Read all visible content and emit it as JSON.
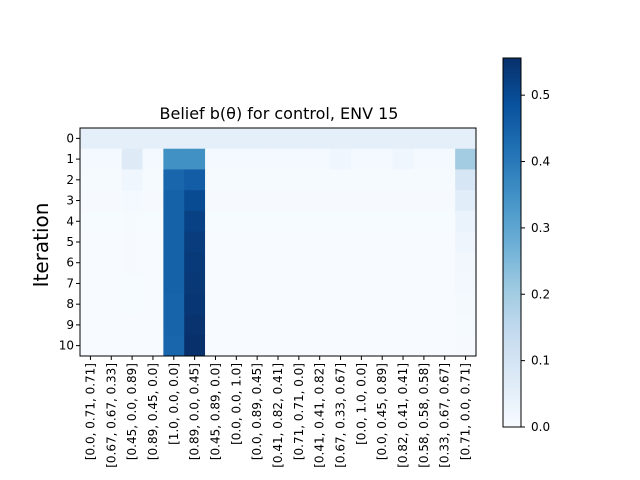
{
  "chart_data": {
    "type": "heatmap",
    "title": "Belief b(θ) for control, ENV 15",
    "xlabel": "",
    "ylabel": "Iteration",
    "colormap": "Blues",
    "colormap_stops": [
      "#f7fbff",
      "#deebf7",
      "#c6dbef",
      "#9ecae1",
      "#6baed6",
      "#4292c6",
      "#2171b5",
      "#08519c",
      "#08306b"
    ],
    "clim": [
      0.0,
      0.556
    ],
    "colorbar_ticks": [
      "0.0",
      "0.1",
      "0.2",
      "0.3",
      "0.4",
      "0.5"
    ],
    "x_categories": [
      "[0.0, 0.71, 0.71]",
      "[0.67, 0.67, 0.33]",
      "[0.45, 0.0, 0.89]",
      "[0.89, 0.45, 0.0]",
      "[1.0, 0.0, 0.0]",
      "[0.89, 0.0, 0.45]",
      "[0.45, 0.89, 0.0]",
      "[0.0, 0.0, 1.0]",
      "[0.0, 0.89, 0.45]",
      "[0.41, 0.82, 0.41]",
      "[0.71, 0.71, 0.0]",
      "[0.41, 0.41, 0.82]",
      "[0.67, 0.33, 0.67]",
      "[0.0, 1.0, 0.0]",
      "[0.0, 0.45, 0.89]",
      "[0.82, 0.41, 0.41]",
      "[0.58, 0.58, 0.58]",
      "[0.33, 0.67, 0.67]",
      "[0.71, 0.0, 0.71]"
    ],
    "y_categories": [
      "0",
      "1",
      "2",
      "3",
      "4",
      "5",
      "6",
      "7",
      "8",
      "9",
      "10"
    ],
    "values": [
      [
        0.053,
        0.053,
        0.053,
        0.053,
        0.053,
        0.053,
        0.053,
        0.053,
        0.053,
        0.053,
        0.053,
        0.053,
        0.053,
        0.053,
        0.053,
        0.053,
        0.053,
        0.053,
        0.053
      ],
      [
        0.01,
        0.01,
        0.07,
        0.01,
        0.35,
        0.35,
        0.01,
        0.01,
        0.01,
        0.01,
        0.01,
        0.01,
        0.02,
        0.01,
        0.01,
        0.02,
        0.01,
        0.01,
        0.2
      ],
      [
        0.005,
        0.005,
        0.02,
        0.005,
        0.44,
        0.46,
        0.005,
        0.005,
        0.005,
        0.005,
        0.005,
        0.005,
        0.005,
        0.005,
        0.005,
        0.005,
        0.005,
        0.005,
        0.09
      ],
      [
        0.003,
        0.003,
        0.01,
        0.003,
        0.45,
        0.5,
        0.003,
        0.003,
        0.003,
        0.003,
        0.003,
        0.003,
        0.003,
        0.003,
        0.003,
        0.003,
        0.003,
        0.003,
        0.06
      ],
      [
        0.002,
        0.002,
        0.006,
        0.002,
        0.45,
        0.52,
        0.002,
        0.002,
        0.002,
        0.002,
        0.002,
        0.002,
        0.002,
        0.002,
        0.002,
        0.002,
        0.002,
        0.002,
        0.035
      ],
      [
        0.001,
        0.001,
        0.004,
        0.001,
        0.45,
        0.53,
        0.001,
        0.001,
        0.001,
        0.001,
        0.001,
        0.001,
        0.001,
        0.001,
        0.001,
        0.001,
        0.001,
        0.001,
        0.025
      ],
      [
        0.001,
        0.001,
        0.003,
        0.001,
        0.45,
        0.535,
        0.001,
        0.001,
        0.001,
        0.001,
        0.001,
        0.001,
        0.001,
        0.001,
        0.001,
        0.001,
        0.001,
        0.001,
        0.018
      ],
      [
        0.001,
        0.001,
        0.002,
        0.001,
        0.45,
        0.54,
        0.001,
        0.001,
        0.001,
        0.001,
        0.001,
        0.001,
        0.001,
        0.001,
        0.001,
        0.001,
        0.001,
        0.001,
        0.012
      ],
      [
        0.001,
        0.001,
        0.002,
        0.001,
        0.445,
        0.545,
        0.001,
        0.001,
        0.001,
        0.001,
        0.001,
        0.001,
        0.001,
        0.001,
        0.001,
        0.001,
        0.001,
        0.001,
        0.008
      ],
      [
        0.0,
        0.0,
        0.001,
        0.0,
        0.445,
        0.55,
        0.0,
        0.0,
        0.0,
        0.0,
        0.0,
        0.0,
        0.0,
        0.0,
        0.0,
        0.0,
        0.0,
        0.0,
        0.005
      ],
      [
        0.0,
        0.0,
        0.001,
        0.0,
        0.44,
        0.556,
        0.0,
        0.0,
        0.0,
        0.0,
        0.0,
        0.0,
        0.0,
        0.0,
        0.0,
        0.0,
        0.0,
        0.0,
        0.003
      ]
    ]
  }
}
